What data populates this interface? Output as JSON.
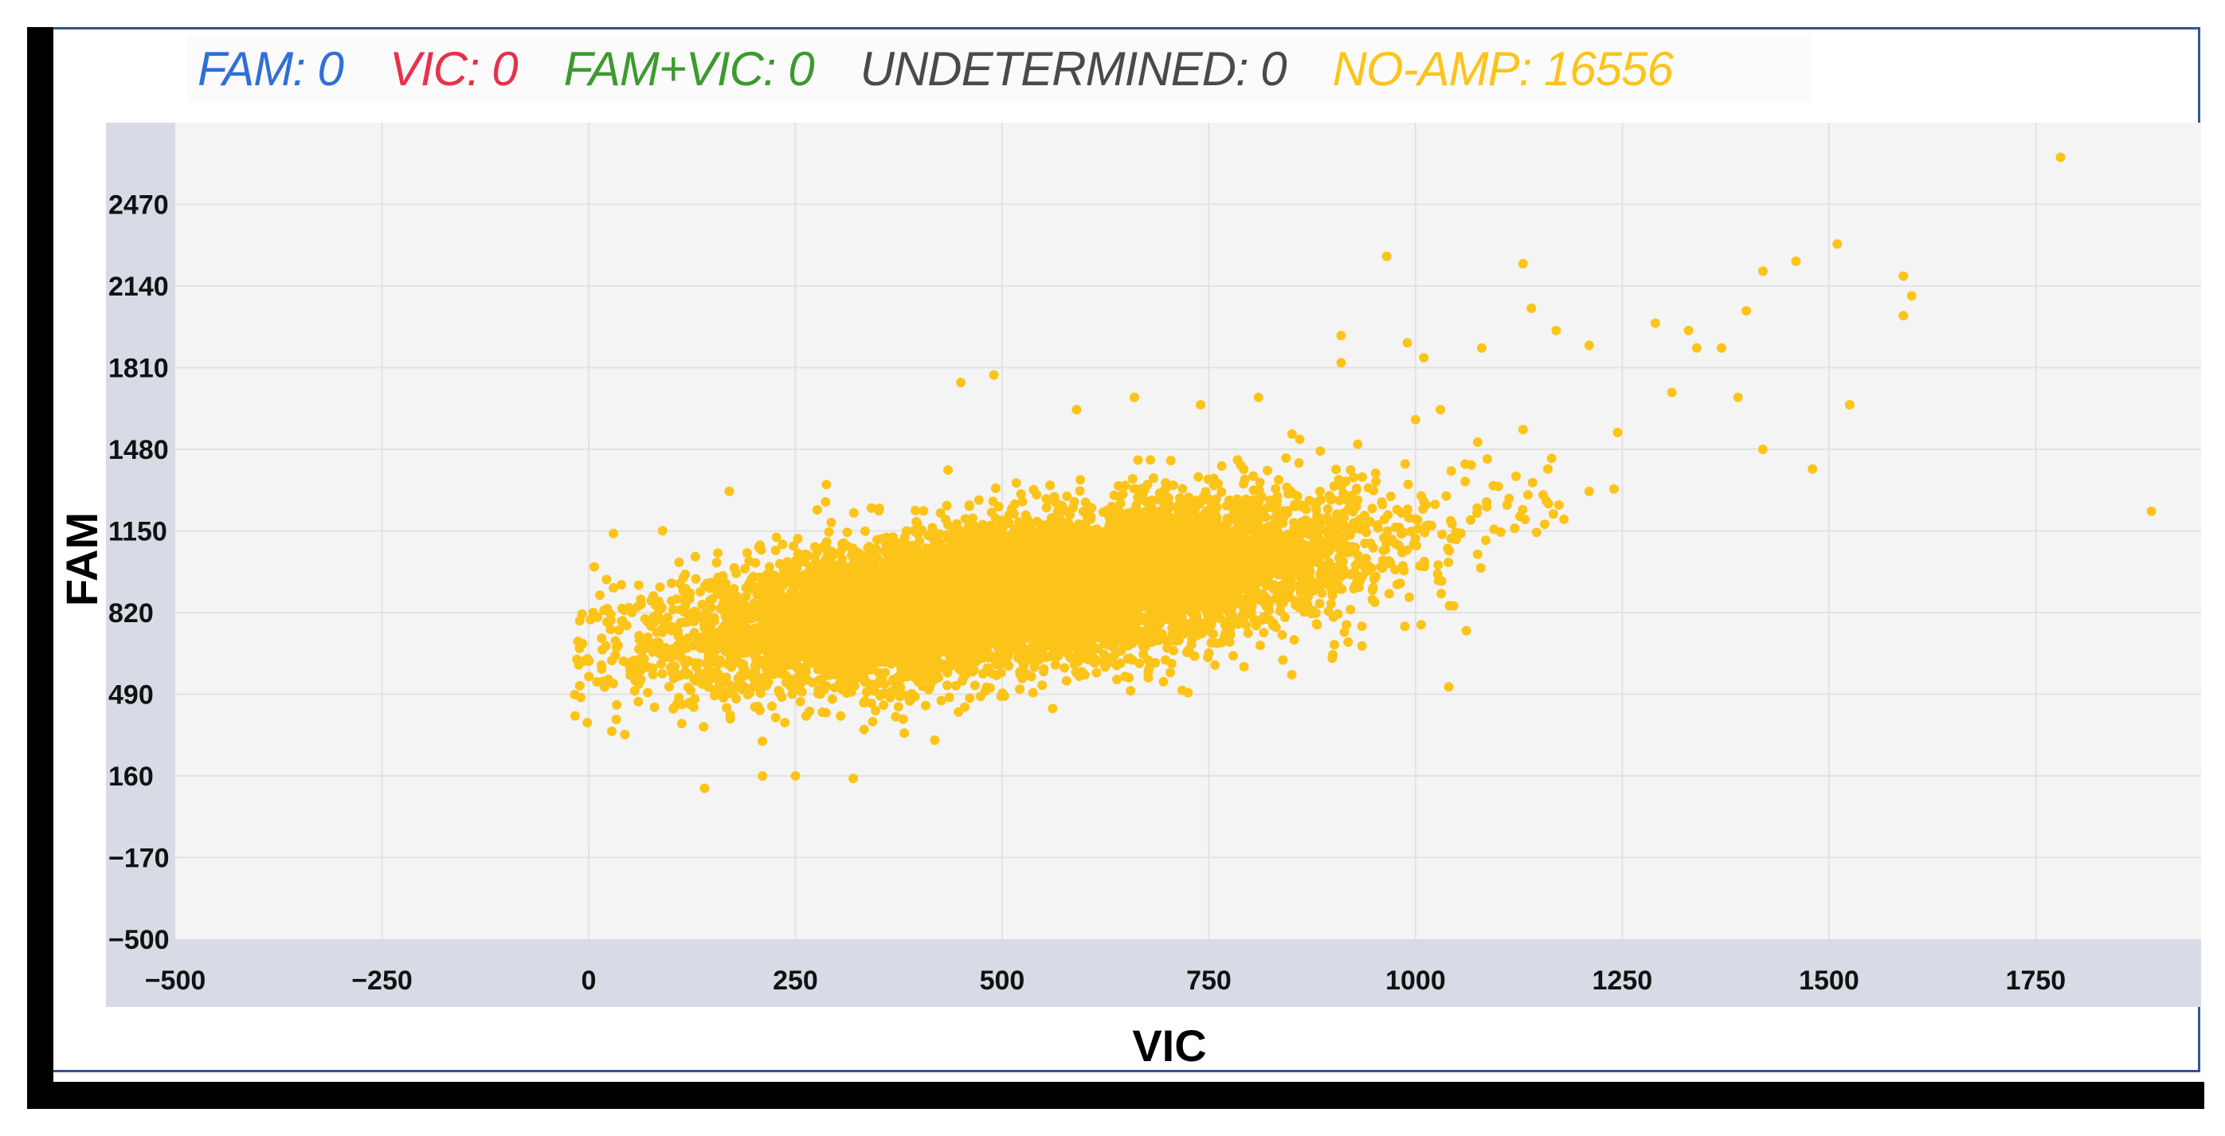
{
  "legend": [
    {
      "label": "FAM: 0",
      "color": "#2f6fd6"
    },
    {
      "label": "VIC: 0",
      "color": "#e8314a"
    },
    {
      "label": "FAM+VIC: 0",
      "color": "#3c9a2e"
    },
    {
      "label": "UNDETERMINED: 0",
      "color": "#4a4a4a"
    },
    {
      "label": "NO-AMP: 16556",
      "color": "#fcc419"
    }
  ],
  "chart_data": {
    "type": "scatter",
    "xlabel": "VIC",
    "ylabel": "FAM",
    "xlim": [
      -500,
      1950
    ],
    "ylim": [
      -500,
      2800
    ],
    "x_ticks": [
      "−500",
      "−250",
      "0",
      "250",
      "500",
      "750",
      "1000",
      "1250",
      "1500",
      "1750"
    ],
    "x_tick_values": [
      -500,
      -250,
      0,
      250,
      500,
      750,
      1000,
      1250,
      1500,
      1750
    ],
    "y_ticks": [
      "−500",
      "−170",
      "160",
      "490",
      "820",
      "1150",
      "1480",
      "1810",
      "2140",
      "2470"
    ],
    "y_tick_values": [
      -500,
      -170,
      160,
      490,
      820,
      1150,
      1480,
      1810,
      2140,
      2470
    ],
    "grid": true,
    "series": [
      {
        "name": "NO-AMP",
        "color": "#fcc419",
        "cluster": {
          "count": 16556,
          "center": [
            520,
            900
          ],
          "spread": [
            200,
            170
          ],
          "correlation": 0.55
        },
        "points": [
          [
            1780,
            2660
          ],
          [
            1890,
            1230
          ],
          [
            965,
            2260
          ],
          [
            1130,
            2230
          ],
          [
            1510,
            2310
          ],
          [
            1460,
            2240
          ],
          [
            1420,
            2200
          ],
          [
            1590,
            2180
          ],
          [
            1600,
            2100
          ],
          [
            1590,
            2020
          ],
          [
            1140,
            2050
          ],
          [
            1290,
            1990
          ],
          [
            1330,
            1960
          ],
          [
            1400,
            2040
          ],
          [
            1340,
            1890
          ],
          [
            1370,
            1890
          ],
          [
            1170,
            1960
          ],
          [
            1210,
            1900
          ],
          [
            1080,
            1890
          ],
          [
            990,
            1910
          ],
          [
            1010,
            1850
          ],
          [
            910,
            1940
          ],
          [
            910,
            1830
          ],
          [
            1310,
            1710
          ],
          [
            1390,
            1690
          ],
          [
            1525,
            1660
          ],
          [
            1420,
            1480
          ],
          [
            1480,
            1400
          ],
          [
            1240,
            1320
          ],
          [
            1210,
            1310
          ],
          [
            1100,
            1330
          ],
          [
            1060,
            1350
          ],
          [
            1160,
            1400
          ],
          [
            1030,
            1640
          ],
          [
            1130,
            1560
          ],
          [
            1040,
            520
          ],
          [
            900,
            650
          ],
          [
            960,
            1000
          ],
          [
            970,
            1290
          ],
          [
            140,
            110
          ],
          [
            250,
            160
          ],
          [
            320,
            150
          ],
          [
            10,
            540
          ],
          [
            30,
            1140
          ],
          [
            30,
            920
          ],
          [
            50,
            590
          ],
          [
            60,
            460
          ],
          [
            90,
            790
          ],
          [
            170,
            1310
          ],
          [
            450,
            1750
          ],
          [
            490,
            1780
          ],
          [
            660,
            1690
          ],
          [
            740,
            1660
          ],
          [
            590,
            1640
          ],
          [
            810,
            1690
          ],
          [
            930,
            1500
          ],
          [
            860,
            1520
          ],
          [
            1000,
            1600
          ],
          [
            1060,
            1420
          ],
          [
            1010,
            1270
          ],
          [
            210,
            300
          ]
        ]
      }
    ]
  }
}
